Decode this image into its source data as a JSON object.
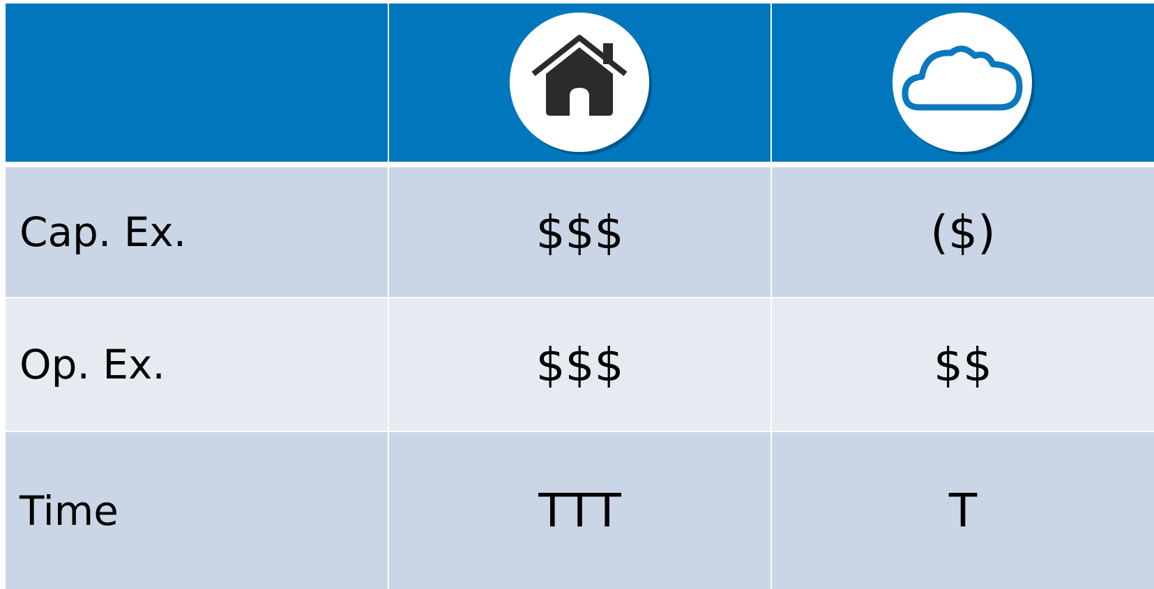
{
  "table": {
    "rows": [
      [
        "Cap. Ex.",
        "$$$",
        "($)"
      ],
      [
        "Op. Ex.",
        "$$$",
        "$$"
      ],
      [
        "Time",
        "TTT",
        "T"
      ]
    ]
  }
}
